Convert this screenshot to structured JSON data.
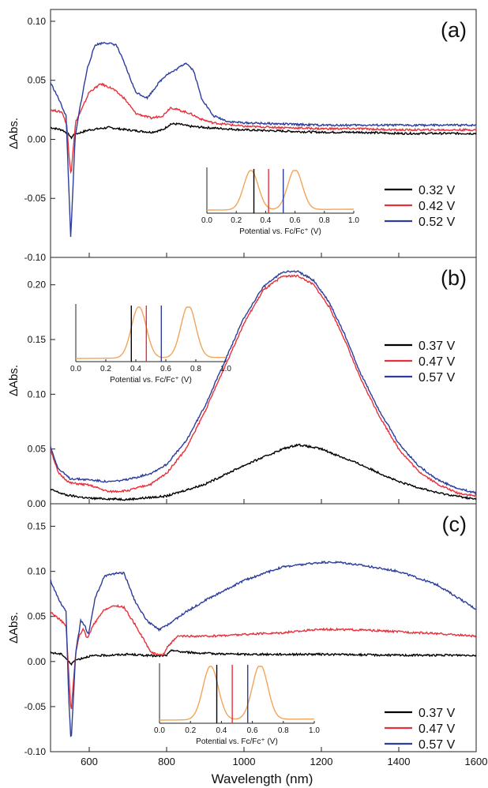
{
  "figure": {
    "x_label": "Wavelength (nm)",
    "x_ticks": [
      "600",
      "800",
      "1000",
      "1200",
      "1400",
      "1600"
    ],
    "y_label": "ΔAbs.",
    "series_colors": [
      "#000000",
      "#e8303a",
      "#2c3d9c"
    ],
    "inset_color": "#f0a55a"
  },
  "chart_data": [
    {
      "type": "line",
      "panel_label": "(a)",
      "xlim": [
        500,
        1600
      ],
      "ylim": [
        -0.1,
        0.11
      ],
      "y_ticks": [
        "0.10",
        "0.05",
        "0.00",
        "-0.05",
        "-0.10"
      ],
      "legend": [
        "0.32 V",
        "0.42 V",
        "0.52 V"
      ],
      "series": [
        {
          "name": "0.32 V",
          "points": [
            [
              500,
              0.01
            ],
            [
              530,
              0.008
            ],
            [
              548,
              0.004
            ],
            [
              553,
              0.001
            ],
            [
              560,
              0.004
            ],
            [
              600,
              0.008
            ],
            [
              650,
              0.01
            ],
            [
              700,
              0.008
            ],
            [
              760,
              0.006
            ],
            [
              790,
              0.008
            ],
            [
              810,
              0.013
            ],
            [
              830,
              0.013
            ],
            [
              860,
              0.011
            ],
            [
              900,
              0.01
            ],
            [
              1000,
              0.008
            ],
            [
              1100,
              0.007
            ],
            [
              1200,
              0.006
            ],
            [
              1300,
              0.006
            ],
            [
              1400,
              0.005
            ],
            [
              1500,
              0.005
            ],
            [
              1600,
              0.005
            ]
          ]
        },
        {
          "name": "0.42 V",
          "points": [
            [
              500,
              0.025
            ],
            [
              530,
              0.023
            ],
            [
              542,
              0.012
            ],
            [
              548,
              -0.015
            ],
            [
              553,
              -0.03
            ],
            [
              558,
              -0.01
            ],
            [
              565,
              0.015
            ],
            [
              580,
              0.025
            ],
            [
              600,
              0.04
            ],
            [
              630,
              0.047
            ],
            [
              660,
              0.043
            ],
            [
              690,
              0.035
            ],
            [
              720,
              0.022
            ],
            [
              760,
              0.018
            ],
            [
              790,
              0.02
            ],
            [
              810,
              0.027
            ],
            [
              830,
              0.025
            ],
            [
              860,
              0.022
            ],
            [
              890,
              0.017
            ],
            [
              920,
              0.014
            ],
            [
              1000,
              0.011
            ],
            [
              1100,
              0.01
            ],
            [
              1200,
              0.009
            ],
            [
              1300,
              0.009
            ],
            [
              1400,
              0.008
            ],
            [
              1500,
              0.008
            ],
            [
              1600,
              0.008
            ]
          ]
        },
        {
          "name": "0.52 V",
          "points": [
            [
              500,
              0.048
            ],
            [
              520,
              0.035
            ],
            [
              540,
              0.02
            ],
            [
              546,
              -0.03
            ],
            [
              552,
              -0.082
            ],
            [
              557,
              -0.05
            ],
            [
              563,
              0.0
            ],
            [
              575,
              0.025
            ],
            [
              595,
              0.06
            ],
            [
              615,
              0.08
            ],
            [
              640,
              0.082
            ],
            [
              670,
              0.08
            ],
            [
              690,
              0.065
            ],
            [
              720,
              0.04
            ],
            [
              750,
              0.035
            ],
            [
              780,
              0.048
            ],
            [
              800,
              0.055
            ],
            [
              820,
              0.058
            ],
            [
              850,
              0.065
            ],
            [
              870,
              0.058
            ],
            [
              890,
              0.035
            ],
            [
              920,
              0.02
            ],
            [
              960,
              0.015
            ],
            [
              1000,
              0.014
            ],
            [
              1100,
              0.013
            ],
            [
              1200,
              0.012
            ],
            [
              1300,
              0.012
            ],
            [
              1400,
              0.012
            ],
            [
              1500,
              0.012
            ],
            [
              1600,
              0.012
            ]
          ]
        }
      ],
      "inset": {
        "x_ticks": [
          "0.0",
          "0.2",
          "0.4",
          "0.6",
          "0.8",
          "1.0"
        ],
        "x_label": "Potential vs. Fc/Fc⁺ (V)",
        "peaks": [
          0.3,
          0.6
        ],
        "markers": [
          0.32,
          0.42,
          0.52
        ]
      }
    },
    {
      "type": "line",
      "panel_label": "(b)",
      "xlim": [
        500,
        1600
      ],
      "ylim": [
        0.0,
        0.225
      ],
      "y_ticks": [
        "0.20",
        "0.15",
        "0.10",
        "0.05",
        "0.00"
      ],
      "legend": [
        "0.37 V",
        "0.47 V",
        "0.57 V"
      ],
      "series": [
        {
          "name": "0.37 V",
          "points": [
            [
              500,
              0.013
            ],
            [
              540,
              0.008
            ],
            [
              600,
              0.005
            ],
            [
              700,
              0.004
            ],
            [
              800,
              0.007
            ],
            [
              900,
              0.018
            ],
            [
              1000,
              0.035
            ],
            [
              1100,
              0.05
            ],
            [
              1140,
              0.054
            ],
            [
              1200,
              0.05
            ],
            [
              1300,
              0.036
            ],
            [
              1400,
              0.02
            ],
            [
              1500,
              0.01
            ],
            [
              1600,
              0.004
            ]
          ]
        },
        {
          "name": "0.47 V",
          "points": [
            [
              500,
              0.05
            ],
            [
              520,
              0.028
            ],
            [
              550,
              0.019
            ],
            [
              600,
              0.017
            ],
            [
              650,
              0.011
            ],
            [
              700,
              0.012
            ],
            [
              760,
              0.018
            ],
            [
              800,
              0.028
            ],
            [
              850,
              0.05
            ],
            [
              900,
              0.085
            ],
            [
              950,
              0.125
            ],
            [
              1000,
              0.165
            ],
            [
              1050,
              0.195
            ],
            [
              1100,
              0.208
            ],
            [
              1140,
              0.208
            ],
            [
              1180,
              0.2
            ],
            [
              1220,
              0.18
            ],
            [
              1260,
              0.15
            ],
            [
              1300,
              0.115
            ],
            [
              1350,
              0.08
            ],
            [
              1400,
              0.05
            ],
            [
              1450,
              0.03
            ],
            [
              1500,
              0.018
            ],
            [
              1550,
              0.01
            ],
            [
              1600,
              0.007
            ]
          ]
        },
        {
          "name": "0.57 V",
          "points": [
            [
              500,
              0.052
            ],
            [
              520,
              0.032
            ],
            [
              550,
              0.023
            ],
            [
              600,
              0.022
            ],
            [
              650,
              0.02
            ],
            [
              700,
              0.022
            ],
            [
              760,
              0.028
            ],
            [
              800,
              0.036
            ],
            [
              850,
              0.057
            ],
            [
              900,
              0.09
            ],
            [
              950,
              0.13
            ],
            [
              1000,
              0.17
            ],
            [
              1050,
              0.198
            ],
            [
              1100,
              0.212
            ],
            [
              1140,
              0.212
            ],
            [
              1180,
              0.204
            ],
            [
              1220,
              0.184
            ],
            [
              1260,
              0.155
            ],
            [
              1300,
              0.12
            ],
            [
              1350,
              0.085
            ],
            [
              1400,
              0.055
            ],
            [
              1450,
              0.035
            ],
            [
              1500,
              0.022
            ],
            [
              1550,
              0.014
            ],
            [
              1600,
              0.01
            ]
          ]
        }
      ],
      "inset": {
        "x_ticks": [
          "0.0",
          "0.2",
          "0.4",
          "0.6",
          "0.8",
          "1.0"
        ],
        "x_label": "Potential vs. Fc/Fc⁺ (V)",
        "peaks": [
          0.42,
          0.75
        ],
        "markers": [
          0.37,
          0.47,
          0.57
        ]
      }
    },
    {
      "type": "line",
      "panel_label": "(c)",
      "xlim": [
        500,
        1600
      ],
      "ylim": [
        -0.1,
        0.175
      ],
      "y_ticks": [
        "0.15",
        "0.10",
        "0.05",
        "0.00",
        "-0.05",
        "-0.10"
      ],
      "legend": [
        "0.37 V",
        "0.47 V",
        "0.57 V"
      ],
      "series": [
        {
          "name": "0.37 V",
          "points": [
            [
              500,
              0.01
            ],
            [
              530,
              0.008
            ],
            [
              548,
              0.0
            ],
            [
              553,
              -0.004
            ],
            [
              560,
              0.001
            ],
            [
              600,
              0.006
            ],
            [
              700,
              0.008
            ],
            [
              780,
              0.006
            ],
            [
              800,
              0.007
            ],
            [
              815,
              0.013
            ],
            [
              830,
              0.011
            ],
            [
              900,
              0.009
            ],
            [
              1000,
              0.008
            ],
            [
              1200,
              0.008
            ],
            [
              1400,
              0.007
            ],
            [
              1600,
              0.007
            ]
          ]
        },
        {
          "name": "0.47 V",
          "points": [
            [
              500,
              0.055
            ],
            [
              520,
              0.048
            ],
            [
              540,
              0.04
            ],
            [
              548,
              -0.02
            ],
            [
              553,
              -0.058
            ],
            [
              558,
              -0.03
            ],
            [
              565,
              0.01
            ],
            [
              575,
              0.03
            ],
            [
              585,
              0.036
            ],
            [
              595,
              0.025
            ],
            [
              610,
              0.04
            ],
            [
              640,
              0.058
            ],
            [
              670,
              0.062
            ],
            [
              690,
              0.06
            ],
            [
              720,
              0.04
            ],
            [
              760,
              0.01
            ],
            [
              790,
              0.007
            ],
            [
              805,
              0.018
            ],
            [
              830,
              0.028
            ],
            [
              900,
              0.028
            ],
            [
              1000,
              0.03
            ],
            [
              1100,
              0.032
            ],
            [
              1200,
              0.036
            ],
            [
              1300,
              0.035
            ],
            [
              1400,
              0.033
            ],
            [
              1500,
              0.031
            ],
            [
              1600,
              0.028
            ]
          ]
        },
        {
          "name": "0.57 V",
          "points": [
            [
              500,
              0.09
            ],
            [
              520,
              0.07
            ],
            [
              540,
              0.055
            ],
            [
              547,
              -0.04
            ],
            [
              553,
              -0.09
            ],
            [
              558,
              -0.05
            ],
            [
              565,
              0.01
            ],
            [
              578,
              0.045
            ],
            [
              588,
              0.04
            ],
            [
              598,
              0.03
            ],
            [
              615,
              0.07
            ],
            [
              640,
              0.095
            ],
            [
              670,
              0.098
            ],
            [
              690,
              0.098
            ],
            [
              720,
              0.065
            ],
            [
              750,
              0.045
            ],
            [
              780,
              0.035
            ],
            [
              800,
              0.04
            ],
            [
              850,
              0.055
            ],
            [
              900,
              0.068
            ],
            [
              1000,
              0.09
            ],
            [
              1100,
              0.105
            ],
            [
              1200,
              0.11
            ],
            [
              1250,
              0.11
            ],
            [
              1300,
              0.107
            ],
            [
              1400,
              0.1
            ],
            [
              1500,
              0.085
            ],
            [
              1600,
              0.058
            ]
          ]
        }
      ],
      "inset": {
        "x_ticks": [
          "0.0",
          "0.2",
          "0.4",
          "0.6",
          "0.8",
          "1.0"
        ],
        "x_label": "Potential vs. Fc/Fc⁺ (V)",
        "peaks": [
          0.33,
          0.65
        ],
        "markers": [
          0.37,
          0.47,
          0.57
        ]
      }
    }
  ]
}
